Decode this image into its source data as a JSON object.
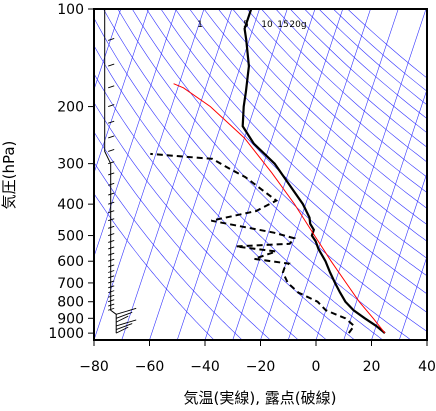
{
  "chart_data": {
    "type": "line",
    "title": "",
    "xlabel": "気温(実線), 露点(破線)",
    "ylabel": "気圧(hPa)",
    "xlim": [
      -80,
      40
    ],
    "ylim_hpa": [
      1050,
      100
    ],
    "y_scale": "log",
    "x_ticks": [
      -80,
      -60,
      -40,
      -20,
      0,
      20,
      40
    ],
    "x_tick_labels": [
      "−80",
      "−60",
      "−40",
      "−20",
      "0",
      "20",
      "40"
    ],
    "y_ticks": [
      100,
      200,
      300,
      400,
      500,
      600,
      700,
      800,
      900,
      1000
    ],
    "y_tick_labels": [
      "100",
      "200",
      "300",
      "400",
      "500",
      "600",
      "700",
      "800",
      "900",
      "1000"
    ],
    "mixing_ratio_labels": [
      "1",
      "5",
      "10",
      "15",
      "20g"
    ],
    "colors": {
      "temperature": "#000000",
      "dewpoint": "#000000",
      "adiabats": "#3333ff",
      "parcel": "#ff0000",
      "wind": "#000000"
    },
    "series": [
      {
        "style": "solid",
        "points": [
          [
            24,
            1000
          ],
          [
            20,
            950
          ],
          [
            15,
            900
          ],
          [
            10,
            850
          ],
          [
            6,
            800
          ],
          [
            3,
            750
          ],
          [
            0,
            700
          ],
          [
            -3,
            650
          ],
          [
            -6,
            600
          ],
          [
            -10,
            550
          ],
          [
            -12,
            520
          ],
          [
            -14,
            500
          ],
          [
            -14,
            480
          ],
          [
            -16,
            460
          ],
          [
            -17,
            440
          ],
          [
            -21,
            400
          ],
          [
            -28,
            350
          ],
          [
            -36,
            300
          ],
          [
            -46,
            260
          ],
          [
            -52,
            230
          ],
          [
            -54,
            200
          ],
          [
            -55,
            180
          ],
          [
            -57,
            150
          ],
          [
            -61,
            125
          ],
          [
            -63,
            115
          ],
          [
            -63,
            100
          ]
        ]
      },
      {
        "style": "dashed",
        "points": [
          [
            11,
            1000
          ],
          [
            12,
            950
          ],
          [
            8,
            900
          ],
          [
            0,
            850
          ],
          [
            -4,
            800
          ],
          [
            -12,
            750
          ],
          [
            -17,
            700
          ],
          [
            -20,
            650
          ],
          [
            -20,
            630
          ],
          [
            -19,
            610
          ],
          [
            -32,
            590
          ],
          [
            -25,
            560
          ],
          [
            -40,
            540
          ],
          [
            -21,
            530
          ],
          [
            -20,
            510
          ],
          [
            -28,
            490
          ],
          [
            -52,
            450
          ],
          [
            -37,
            420
          ],
          [
            -31,
            390
          ],
          [
            -45,
            330
          ],
          [
            -52,
            310
          ],
          [
            -59,
            290
          ],
          [
            -82,
            280
          ]
        ]
      },
      {
        "style": "thin",
        "points": [
          [
            24,
            1000
          ],
          [
            18,
            900
          ],
          [
            11,
            800
          ],
          [
            4,
            700
          ],
          [
            -4,
            600
          ],
          [
            -13,
            500
          ],
          [
            -24,
            400
          ],
          [
            -36,
            320
          ],
          [
            -50,
            250
          ],
          [
            -66,
            200
          ],
          [
            -78,
            175
          ],
          [
            -82,
            170
          ]
        ]
      }
    ],
    "wind_levels_hpa": [
      1000,
      975,
      950,
      925,
      900,
      875,
      850,
      825,
      800,
      775,
      750,
      725,
      700,
      675,
      650,
      625,
      600,
      575,
      550,
      525,
      500,
      475,
      450,
      425,
      400,
      375,
      350,
      325,
      300,
      275,
      250,
      225,
      200,
      175,
      150,
      125,
      100
    ]
  }
}
